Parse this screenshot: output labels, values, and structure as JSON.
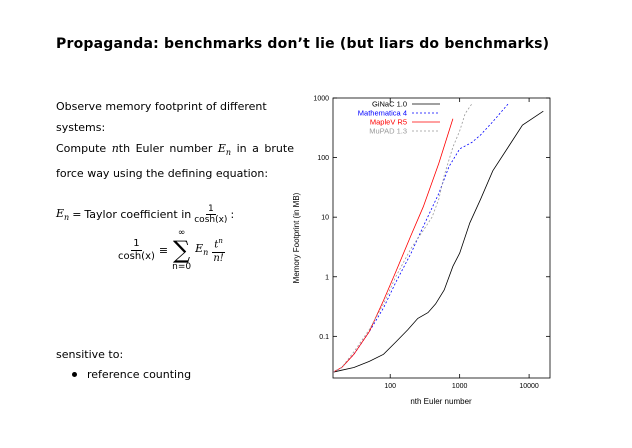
{
  "slide": {
    "title": "Propaganda: benchmarks don’t lie (but liars do benchmarks)",
    "p1": "Observe memory footprint of different systems:",
    "p2_a": "Compute ",
    "p2_n": "n",
    "p2_b": "th Euler number ",
    "p2_E": "E",
    "p2_sub": "n",
    "p2_c": " in a brute force way using the defining equation:",
    "eq1_lhs": "E",
    "eq1_lhs_sub": "n",
    "eq1_eq": "=",
    "eq1_text": "Taylor coefficient in",
    "eq1_num": "1",
    "eq1_den": "cosh(x)",
    "eq1_colon": ":",
    "eq2_num": "1",
    "eq2_den": "cosh(x)",
    "eq2_equiv": "≡",
    "eq2_sum_top": "∞",
    "eq2_sum": "∑",
    "eq2_sum_bottom": "n=0",
    "eq2_term": "E",
    "eq2_term_sub": "n",
    "eq2_frac_num": "t",
    "eq2_frac_num_sup": "n",
    "eq2_frac_den": "n!",
    "sensitive": "sensitive to:",
    "bullet1": "reference counting"
  },
  "chart_data": {
    "type": "line",
    "xlabel": "nth Euler number",
    "ylabel": "Memory Footprint (in MB)",
    "xscale": "log",
    "yscale": "log",
    "xlim": [
      15,
      20000
    ],
    "ylim": [
      0.02,
      1000
    ],
    "xticks": [
      100,
      1000,
      10000
    ],
    "xtick_labels": [
      "100",
      "1000",
      "10000"
    ],
    "yticks": [
      0.1,
      1,
      10,
      100,
      1000
    ],
    "ytick_labels": [
      "0.1",
      "1",
      "10",
      "100",
      "1000"
    ],
    "grid": false,
    "legend_position": "top-left",
    "series": [
      {
        "name": "GiNaC 1.0",
        "color": "#000000",
        "dash": "solid",
        "x": [
          15,
          20,
          30,
          50,
          80,
          120,
          180,
          250,
          350,
          450,
          600,
          800,
          1000,
          1400,
          2000,
          3000,
          5000,
          8000,
          16000
        ],
        "y": [
          0.025,
          0.027,
          0.03,
          0.038,
          0.05,
          0.08,
          0.13,
          0.2,
          0.25,
          0.35,
          0.6,
          1.5,
          2.5,
          8,
          20,
          60,
          150,
          350,
          600
        ]
      },
      {
        "name": "Mathematica 4",
        "color": "#0000ff",
        "dash": "2,2",
        "x": [
          15,
          20,
          30,
          50,
          80,
          120,
          200,
          300,
          500,
          700,
          1000,
          1500,
          2000,
          3000,
          5000
        ],
        "y": [
          0.025,
          0.03,
          0.05,
          0.12,
          0.3,
          0.8,
          2.5,
          7,
          25,
          70,
          140,
          180,
          240,
          400,
          800
        ]
      },
      {
        "name": "MapleV R5",
        "color": "#ff0000",
        "dash": "solid",
        "x": [
          15,
          20,
          30,
          50,
          80,
          120,
          200,
          300,
          500,
          800
        ],
        "y": [
          0.025,
          0.03,
          0.05,
          0.12,
          0.4,
          1.2,
          5,
          15,
          80,
          450
        ]
      },
      {
        "name": "MuPAD 1.3",
        "color": "#999999",
        "dash": "2,2",
        "x": [
          15,
          20,
          30,
          50,
          80,
          120,
          200,
          300,
          400,
          500,
          600,
          800,
          1000,
          1200,
          1500
        ],
        "y": [
          0.025,
          0.03,
          0.055,
          0.13,
          0.35,
          1,
          3,
          6,
          10,
          20,
          50,
          150,
          280,
          550,
          800
        ]
      }
    ]
  }
}
